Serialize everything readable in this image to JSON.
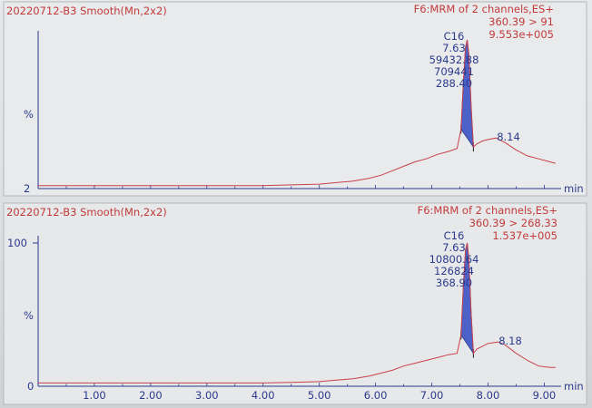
{
  "chart_data": [
    {
      "type": "line",
      "title_left": "20220712-B3 Smooth(Mn,2x2)",
      "title_right": [
        "F6:MRM of 2 channels,ES+",
        "360.39 > 91",
        "9.553e+005"
      ],
      "ylabel": "%",
      "y_min_label": "2",
      "xlabel": "min",
      "xlim": [
        0.0,
        9.3
      ],
      "ylim": [
        0,
        100
      ],
      "x_ticks": [],
      "peak_labels": [
        {
          "lines": [
            "C16",
            "7.63",
            "59432.88",
            "709441",
            "288.40"
          ]
        },
        {
          "lines": [
            "8.14"
          ]
        }
      ],
      "series": [
        {
          "color": "#c8414a",
          "x": [
            0.0,
            0.5,
            1.0,
            1.5,
            2.0,
            2.5,
            3.0,
            3.5,
            4.0,
            4.5,
            5.0,
            5.3,
            5.6,
            5.9,
            6.1,
            6.3,
            6.5,
            6.7,
            6.9,
            7.1,
            7.3,
            7.45,
            7.52,
            7.56,
            7.6,
            7.63,
            7.66,
            7.7,
            7.74,
            7.8,
            7.9,
            8.0,
            8.14,
            8.3,
            8.5,
            8.7,
            8.9,
            9.1,
            9.2
          ],
          "y": [
            2,
            2,
            2,
            2,
            2,
            2,
            2,
            2,
            2,
            2.5,
            3,
            4,
            5,
            7,
            9,
            12,
            15,
            18,
            20,
            23,
            25,
            27,
            40,
            70,
            95,
            100,
            90,
            55,
            28,
            30,
            32,
            33,
            34,
            31,
            26,
            22,
            20,
            18,
            17
          ]
        }
      ]
    },
    {
      "type": "line",
      "title_left": "20220712-B3 Smooth(Mn,2x2)",
      "title_right": [
        "F6:MRM of 2 channels,ES+",
        "360.39 > 268.33",
        "1.537e+005"
      ],
      "ylabel": "%",
      "y_top_label": "100",
      "y_min_label": "0",
      "xlabel": "min",
      "xlim": [
        0.0,
        9.3
      ],
      "ylim": [
        0,
        100
      ],
      "x_ticks": [
        "1.00",
        "2.00",
        "3.00",
        "4.00",
        "5.00",
        "6.00",
        "7.00",
        "8.00",
        "9.00"
      ],
      "peak_labels": [
        {
          "lines": [
            "C16",
            "7.63",
            "10800.64",
            "126824",
            "368.90"
          ]
        },
        {
          "lines": [
            "8.18"
          ]
        }
      ],
      "series": [
        {
          "color": "#c8414a",
          "x": [
            0.0,
            0.5,
            1.0,
            1.5,
            2.0,
            2.5,
            3.0,
            3.5,
            4.0,
            4.5,
            5.0,
            5.3,
            5.6,
            5.9,
            6.1,
            6.3,
            6.5,
            6.7,
            6.9,
            7.1,
            7.3,
            7.45,
            7.52,
            7.56,
            7.6,
            7.63,
            7.66,
            7.7,
            7.74,
            7.8,
            7.9,
            8.0,
            8.18,
            8.3,
            8.5,
            8.7,
            8.9,
            9.1,
            9.2
          ],
          "y": [
            1,
            1,
            1,
            1,
            1,
            1,
            1,
            1,
            1,
            1.5,
            2,
            3,
            4,
            6,
            8,
            10,
            13,
            15,
            17,
            19,
            21,
            22,
            35,
            68,
            95,
            100,
            88,
            50,
            22,
            25,
            27,
            29,
            30,
            28,
            22,
            17,
            13,
            12,
            12
          ]
        }
      ]
    }
  ]
}
